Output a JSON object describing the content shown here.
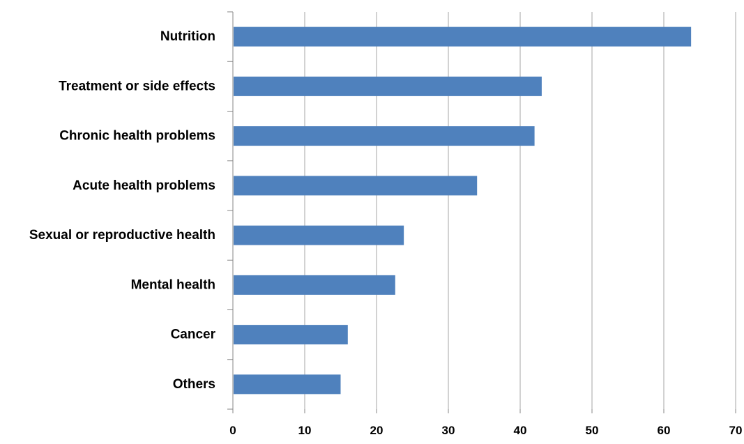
{
  "chart_data": {
    "type": "bar",
    "orientation": "horizontal",
    "categories": [
      "Nutrition",
      "Treatment or side effects",
      "Chronic health problems",
      "Acute health problems",
      "Sexual or reproductive  health",
      "Mental health",
      "Cancer",
      "Others"
    ],
    "values": [
      63.8,
      43,
      42,
      34,
      23.8,
      22.6,
      16,
      15
    ],
    "title": "",
    "xlabel": "",
    "ylabel": "",
    "xlim": [
      0,
      70
    ],
    "x_ticks": [
      "0",
      "10",
      "20",
      "30",
      "40",
      "50",
      "60",
      "70"
    ],
    "grid": "vertical",
    "legend": "none",
    "bar_color": "#4f81bd",
    "grid_color": "#a6a6a6",
    "axis_color": "#868686"
  }
}
